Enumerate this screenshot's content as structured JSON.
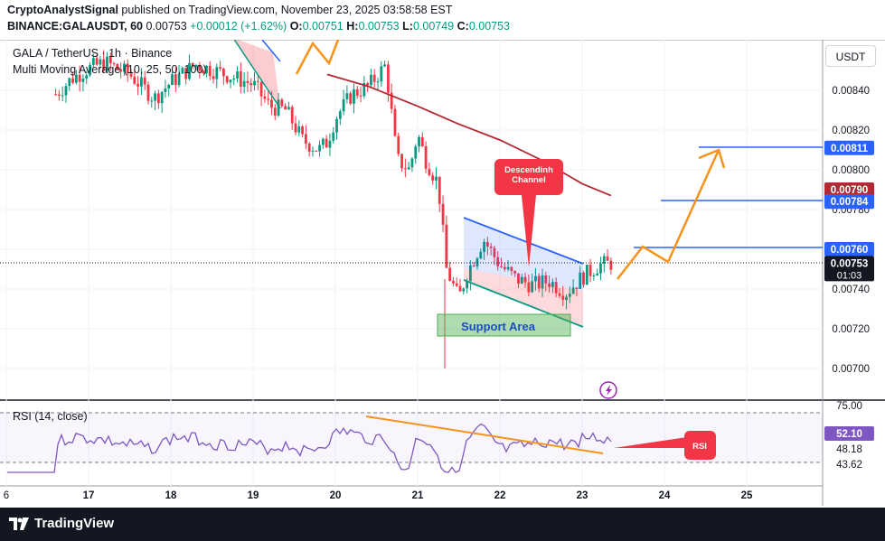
{
  "header": {
    "author": "CryptoAnalystSignal",
    "published_text": "published on TradingView.com, November 23, 2025 03:58:58 EST",
    "symbol": "BINANCE:GALAUSDT, 60",
    "last": "0.00753",
    "change": "+0.00012 (+1.62%)",
    "o_label": "O:",
    "o_val": "0.00751",
    "h_label": "H:",
    "h_val": "0.00753",
    "l_label": "L:",
    "l_val": "0.00749",
    "c_label": "C:",
    "c_val": "0.00753"
  },
  "legend": {
    "title": "GALA / TetherUS · 1h · Binance",
    "indicator": "Multi Moving Average (10, 25, 50, 100)",
    "rsi": "RSI (14, close)"
  },
  "currency_button": "USDT",
  "colors": {
    "up": "#089981",
    "down": "#f23645",
    "accent_blue": "#2962ff",
    "orange": "#f7931a",
    "ma": "#b22833",
    "annotation_red": "#f23645",
    "support_fill": "#4caf50",
    "rsi_line": "#7e57c2"
  },
  "chart_data": {
    "type": "candlestick",
    "x_axis_labels": [
      "6",
      "17",
      "18",
      "19",
      "20",
      "21",
      "22",
      "23",
      "24",
      "25"
    ],
    "y_axis_ticks": [
      "0.00840",
      "0.00820",
      "0.00800",
      "0.00780",
      "0.00760",
      "0.00740",
      "0.00720",
      "0.00700"
    ],
    "price_badges": [
      {
        "value": "0.00811",
        "kind": "level"
      },
      {
        "value": "0.00790",
        "kind": "ma"
      },
      {
        "value": "0.00784",
        "kind": "level"
      },
      {
        "value": "0.00760",
        "kind": "level"
      },
      {
        "value": "0.00753",
        "kind": "last"
      }
    ],
    "countdown": "01:03",
    "close_path": [
      [
        "16.6",
        0.00838
      ],
      [
        "16.8",
        0.00846
      ],
      [
        "17.0",
        0.00851
      ],
      [
        "17.2",
        0.00854
      ],
      [
        "17.5",
        0.00848
      ],
      [
        "17.8",
        0.00836
      ],
      [
        "18.0",
        0.00844
      ],
      [
        "18.3",
        0.00853
      ],
      [
        "18.6",
        0.00849
      ],
      [
        "19.0",
        0.00843
      ],
      [
        "19.2",
        0.00832
      ],
      [
        "19.4",
        0.0083
      ],
      [
        "19.6",
        0.00815
      ],
      [
        "19.8",
        0.0081
      ],
      [
        "19.9",
        0.00814
      ],
      [
        "20.0",
        0.00826
      ],
      [
        "20.2",
        0.00838
      ],
      [
        "20.4",
        0.00842
      ],
      [
        "20.6",
        0.00852
      ],
      [
        "20.65",
        0.0084
      ],
      [
        "20.75",
        0.00805
      ],
      [
        "20.9",
        0.008
      ],
      [
        "21.0",
        0.00818
      ],
      [
        "21.1",
        0.00805
      ],
      [
        "21.25",
        0.00793
      ],
      [
        "21.35",
        0.0075
      ],
      [
        "21.5",
        0.00735
      ],
      [
        "21.6",
        0.00748
      ],
      [
        "21.8",
        0.00765
      ],
      [
        "22.0",
        0.00752
      ],
      [
        "22.2",
        0.00745
      ],
      [
        "22.4",
        0.00742
      ],
      [
        "22.6",
        0.00744
      ],
      [
        "22.8",
        0.00738
      ],
      [
        "23.0",
        0.00746
      ],
      [
        "23.2",
        0.00752
      ],
      [
        "23.35",
        0.00753
      ]
    ],
    "moving_average_path": [
      [
        "19.9",
        0.00848
      ],
      [
        "20.4",
        0.00842
      ],
      [
        "21.0",
        0.00832
      ],
      [
        "21.5",
        0.00823
      ],
      [
        "22.0",
        0.00815
      ],
      [
        "22.5",
        0.00805
      ],
      [
        "23.0",
        0.00793
      ],
      [
        "23.35",
        0.00787
      ]
    ],
    "annotations": {
      "channel_label": "Descendinh Channel",
      "support_label": "Support Area",
      "rsi_label": "RSI"
    },
    "rsi": {
      "levels": [
        "75.00",
        "52.10",
        "48.18",
        "43.62"
      ]
    }
  },
  "footer": {
    "brand": "TradingView"
  }
}
